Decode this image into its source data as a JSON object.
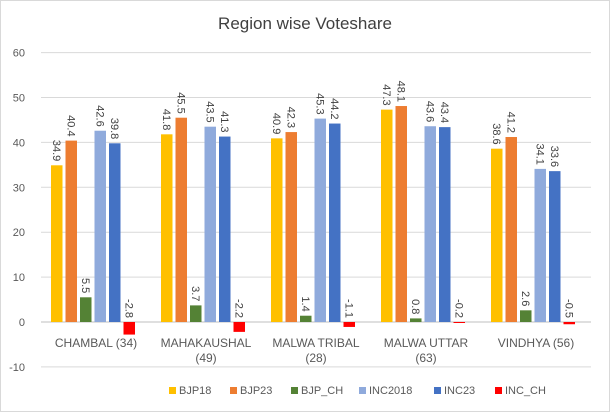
{
  "chart_data": {
    "type": "bar",
    "title": "Region wise Voteshare",
    "categories": [
      "CHAMBAL (34)",
      "MAHAKAUSHAL (49)",
      "MALWA TRIBAL (28)",
      "MALWA UTTAR (63)",
      "VINDHYA (56)"
    ],
    "series": [
      {
        "name": "BJP18",
        "color": "#FFC000",
        "values": [
          34.9,
          41.8,
          40.9,
          47.3,
          38.6
        ]
      },
      {
        "name": "BJP23",
        "color": "#ED7D31",
        "values": [
          40.4,
          45.5,
          42.3,
          48.1,
          41.2
        ]
      },
      {
        "name": "BJP_CH",
        "color": "#548235",
        "values": [
          5.5,
          3.7,
          1.4,
          0.8,
          2.6
        ]
      },
      {
        "name": "INC2018",
        "color": "#8FAADC",
        "values": [
          42.6,
          43.5,
          45.3,
          43.6,
          34.1
        ]
      },
      {
        "name": "INC23",
        "color": "#4472C4",
        "values": [
          39.8,
          41.3,
          44.2,
          43.4,
          33.6
        ]
      },
      {
        "name": "INC_CH",
        "color": "#FF0000",
        "values": [
          -2.8,
          -2.2,
          -1.1,
          -0.2,
          -0.5
        ]
      }
    ],
    "ylim": [
      -10,
      60
    ],
    "yticks": [
      -10,
      0,
      10,
      20,
      30,
      40,
      50,
      60
    ],
    "grid": true,
    "legend": "bottom",
    "data_labels": true
  }
}
